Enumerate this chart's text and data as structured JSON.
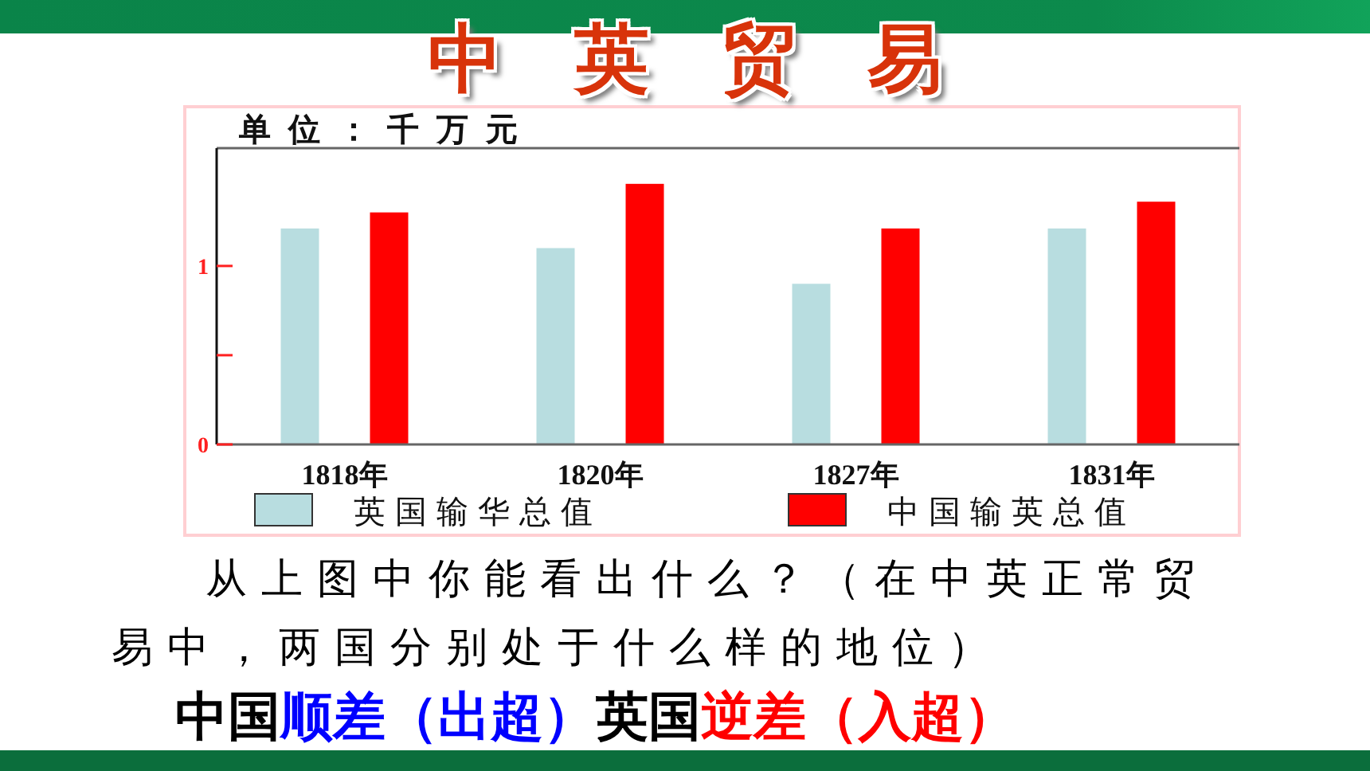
{
  "chart_data": {
    "type": "bar",
    "title": "中英贸易",
    "ylabel": "单位：千万元",
    "categories": [
      "1818年",
      "1820年",
      "1827年",
      "1831年"
    ],
    "series": [
      {
        "name": "英国输华总值",
        "color": "#b8dde0",
        "values": [
          1.21,
          1.1,
          0.9,
          1.21
        ]
      },
      {
        "name": "中国输英总值",
        "color": "#ff0000",
        "values": [
          1.3,
          1.46,
          1.21,
          1.36
        ]
      }
    ],
    "ylim": [
      0,
      1.66
    ],
    "yticks": [
      0,
      {
        "value": 0.5,
        "label": null
      },
      1
    ],
    "legend": "bottom",
    "annotations": [
      "从上图中你能看出什么？（在中英正常贸易中，两国分别处于什么样的地位）",
      "中国",
      "顺差（出超）",
      "英国",
      "逆差（入超）"
    ]
  }
}
